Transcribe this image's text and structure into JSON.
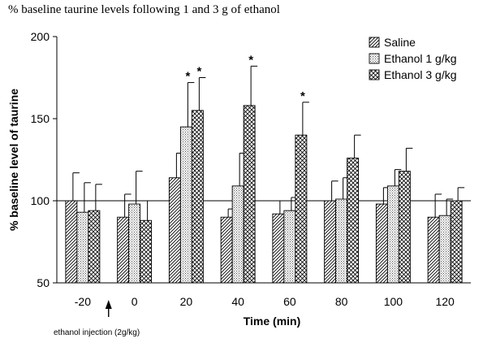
{
  "page": {
    "title": "% baseline taurine levels following 1 and 3 g of ethanol"
  },
  "chart_data": {
    "type": "bar",
    "xlabel": "Time (min)",
    "ylabel": "% baseline level of taurine",
    "categories": [
      "-20",
      "0",
      "20",
      "40",
      "60",
      "80",
      "100",
      "120"
    ],
    "ylim": [
      50,
      200
    ],
    "yticks": [
      "50",
      "100",
      "150",
      "200"
    ],
    "reference_line": 100,
    "legend_position": "top-right",
    "series": [
      {
        "name": "Saline",
        "pattern": "diagonal-hatch",
        "values": [
          100,
          90,
          114,
          90,
          92,
          100,
          98,
          90
        ],
        "errors": [
          17,
          14,
          15,
          5,
          8,
          12,
          10,
          14
        ],
        "significant": [
          false,
          false,
          false,
          false,
          false,
          false,
          false,
          false
        ]
      },
      {
        "name": "Ethanol 1 g/kg",
        "pattern": "fine-dots",
        "values": [
          93,
          98,
          145,
          109,
          94,
          101,
          109,
          91
        ],
        "errors": [
          18,
          20,
          27,
          20,
          8,
          13,
          10,
          10
        ],
        "significant": [
          false,
          false,
          true,
          false,
          false,
          false,
          false,
          false
        ]
      },
      {
        "name": "Ethanol 3 g/kg",
        "pattern": "crosshatch",
        "values": [
          94,
          88,
          155,
          158,
          140,
          126,
          118,
          100
        ],
        "errors": [
          16,
          12,
          20,
          24,
          20,
          14,
          14,
          8
        ],
        "significant": [
          false,
          false,
          true,
          true,
          true,
          false,
          false,
          false
        ]
      }
    ],
    "significance_marker": "*",
    "annotation": {
      "text": "ethanol injection (2g/kg)",
      "arrow_between": [
        "-20",
        "0"
      ]
    }
  }
}
